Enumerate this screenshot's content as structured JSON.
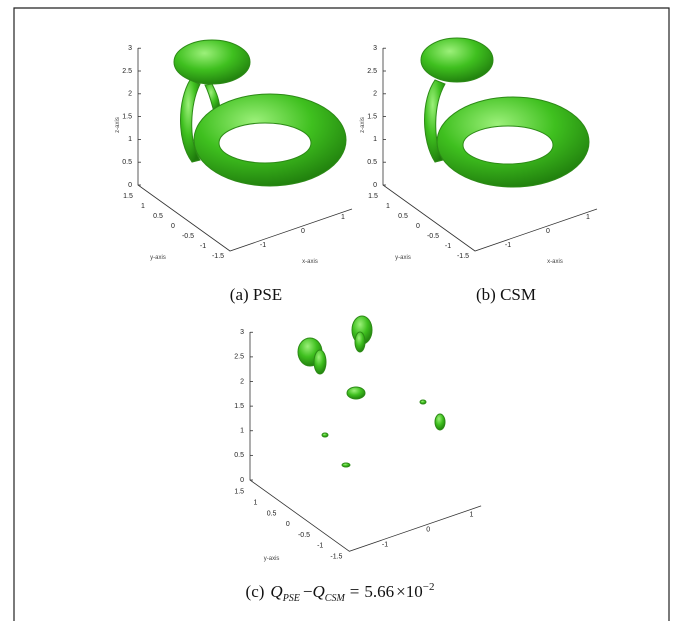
{
  "panels": [
    {
      "z_ticks": [
        "0",
        "0.5",
        "1",
        "1.5",
        "2",
        "2.5",
        "3"
      ],
      "y_ticks": [
        "1.5",
        "1",
        "0.5",
        "0",
        "-0.5",
        "-1",
        "-1.5"
      ],
      "x_ticks": [
        "-1",
        "0",
        "1"
      ],
      "z_label": "z-axis",
      "y_label": "y-axis",
      "x_label": "x-axis",
      "caption": "(a) PSE"
    },
    {
      "z_ticks": [
        "0",
        "0.5",
        "1",
        "1.5",
        "2",
        "2.5",
        "3"
      ],
      "y_ticks": [
        "1.5",
        "1",
        "0.5",
        "0",
        "-0.5",
        "-1",
        "-1.5"
      ],
      "x_ticks": [
        "-1",
        "0",
        "1"
      ],
      "z_label": "z-axis",
      "y_label": "y-axis",
      "x_label": "x-axis",
      "caption": "(b) CSM"
    },
    {
      "z_ticks": [
        "0",
        "0.5",
        "1",
        "1.5",
        "2",
        "2.5",
        "3"
      ],
      "y_ticks": [
        "1.5",
        "1",
        "0.5",
        "0",
        "-0.5",
        "-1",
        "-1.5"
      ],
      "x_ticks": [
        "-1",
        "0",
        "1"
      ],
      "y_label": "y-axis",
      "caption": {
        "prefix": "(c)",
        "lhs_symbol": "Q",
        "lhs_sub": "PSE",
        "operator": "−",
        "rhs_symbol": "Q",
        "rhs_sub": "CSM",
        "equals": "=",
        "value": "5.66",
        "times": "×",
        "base": "10",
        "exponent": "−2"
      }
    }
  ]
}
